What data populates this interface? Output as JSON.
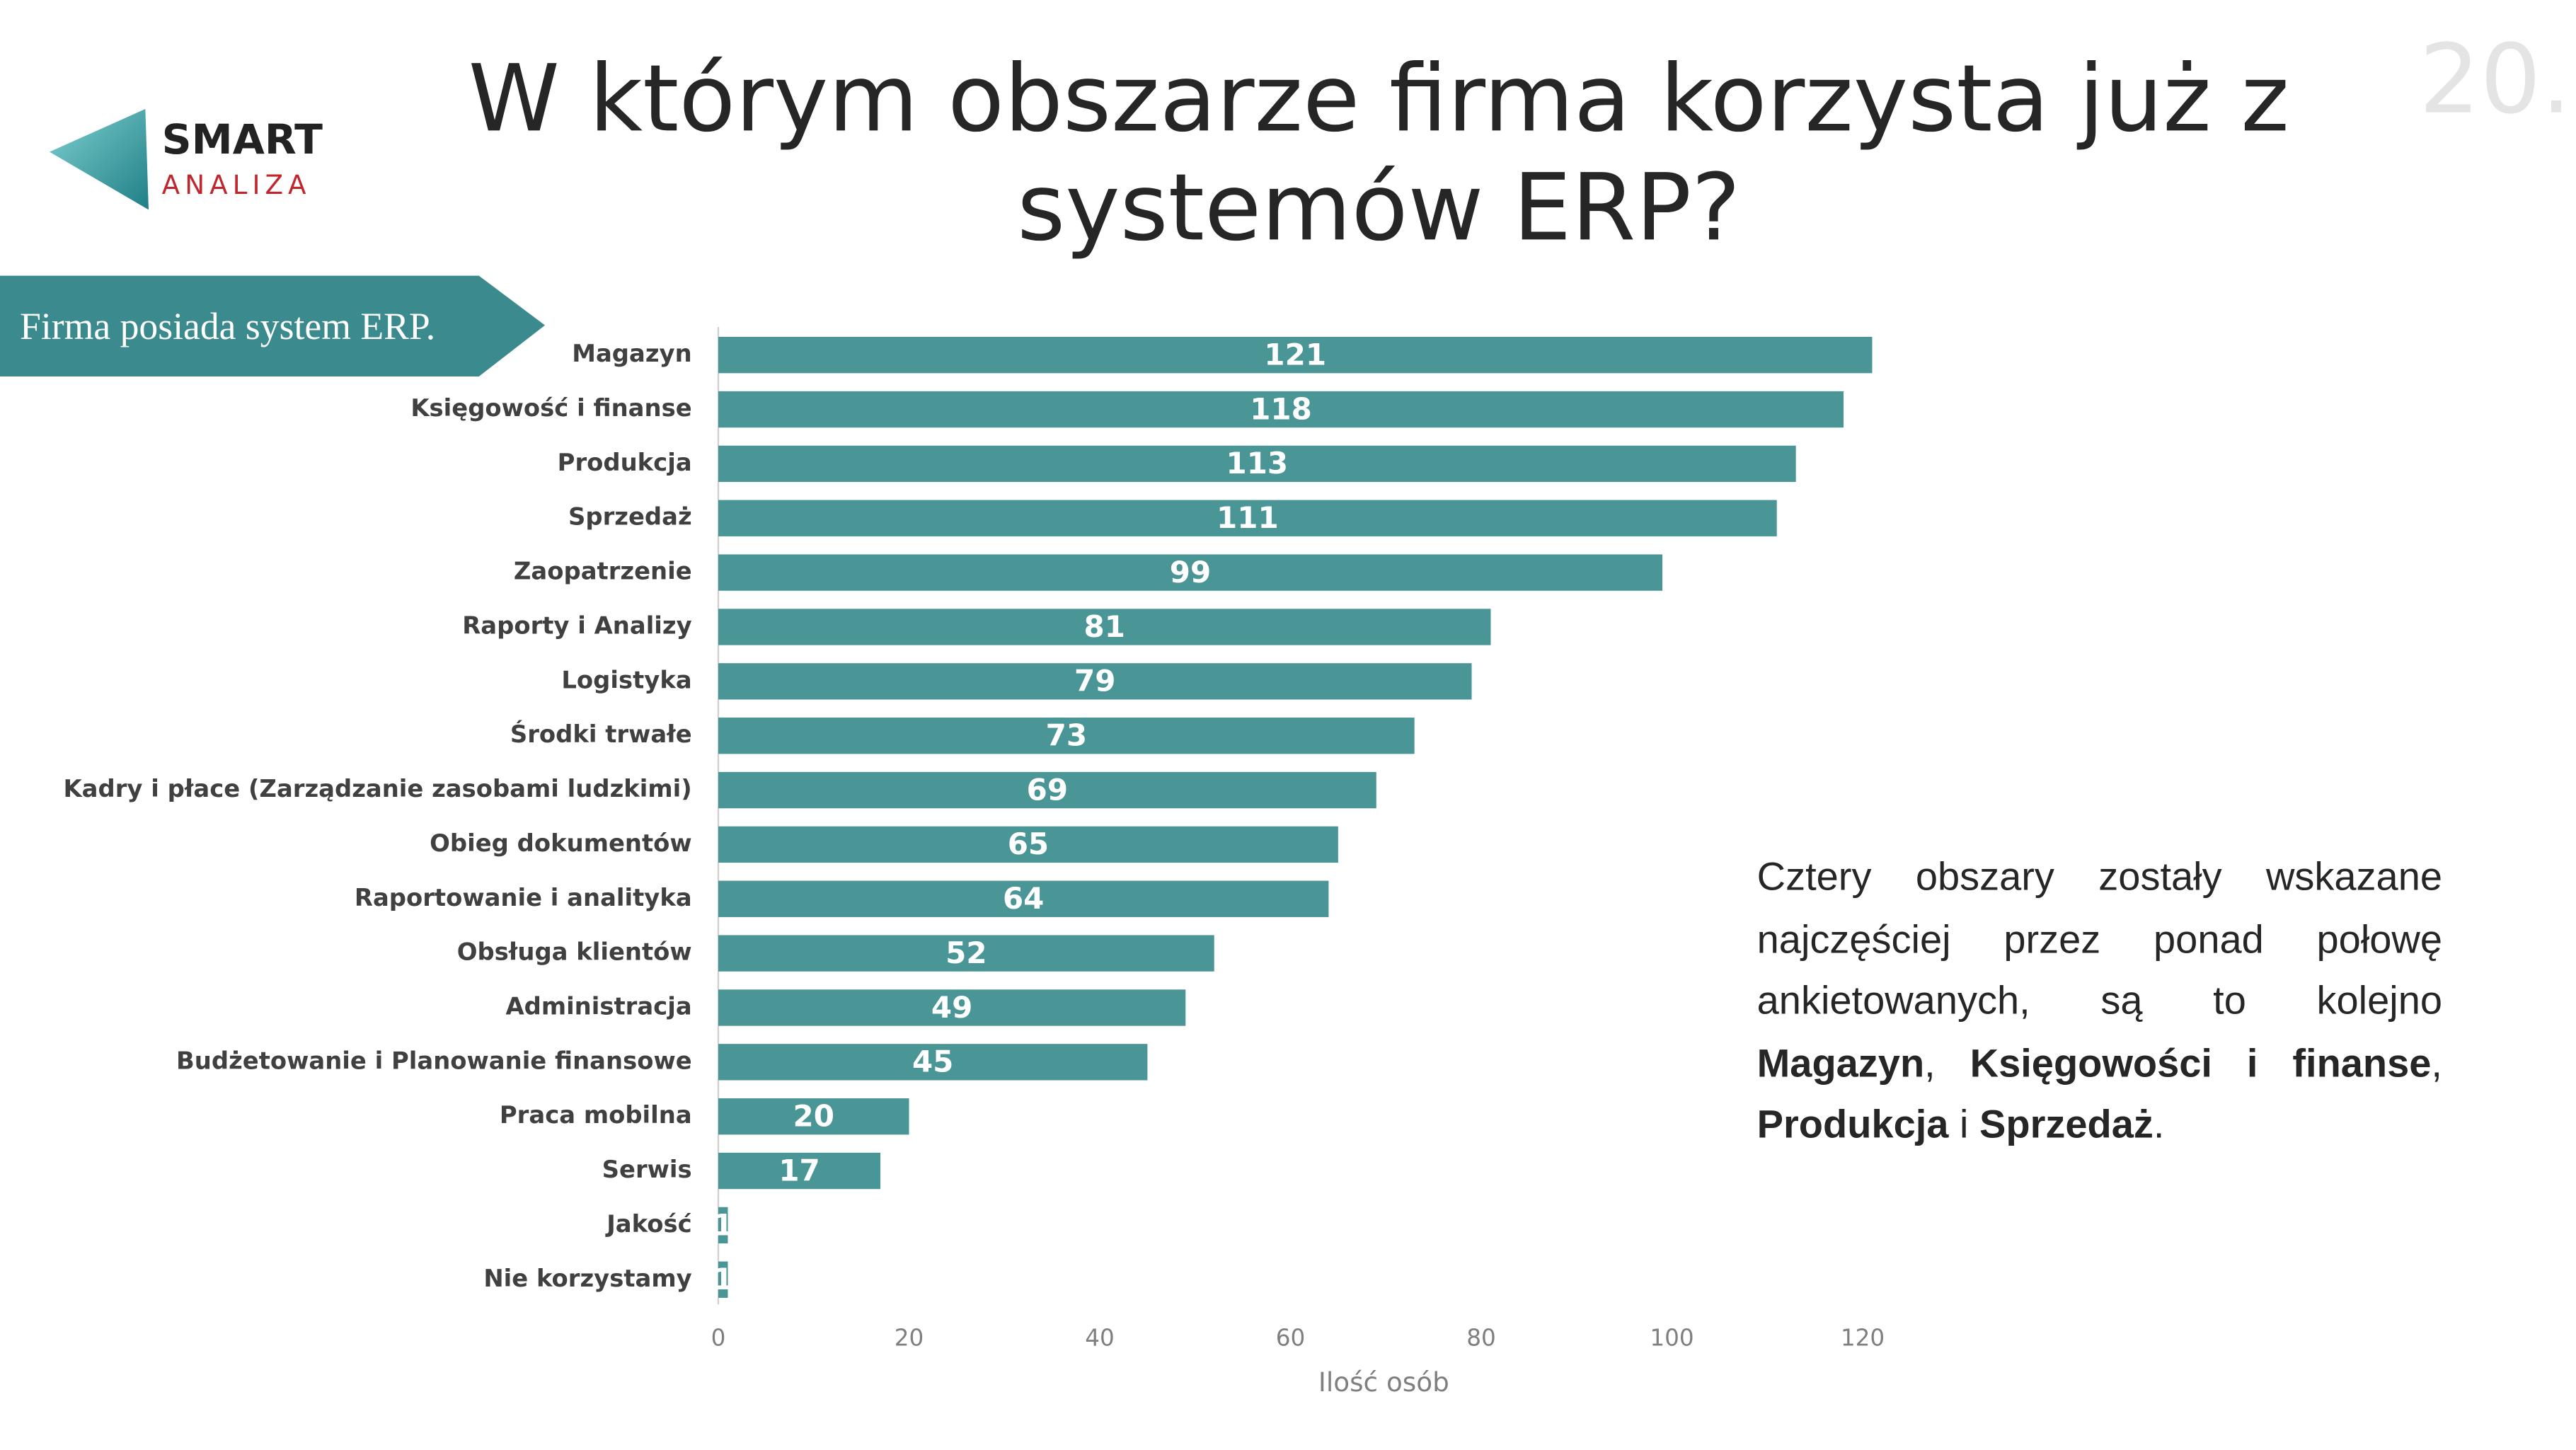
{
  "logo": {
    "name": "SMART",
    "sub": "ANALIZA"
  },
  "page_number": "20.",
  "banner": "Firma posiada system ERP.",
  "chart_data": {
    "type": "bar",
    "orientation": "horizontal",
    "title": "W którym obszarze firma korzysta już z systemów ERP?",
    "categories": [
      "Magazyn",
      "Księgowość i finanse",
      "Produkcja",
      "Sprzedaż",
      "Zaopatrzenie",
      "Raporty i Analizy",
      "Logistyka",
      "Środki trwałe",
      "Kadry i płace (Zarządzanie zasobami ludzkimi)",
      "Obieg dokumentów",
      "Raportowanie i analityka",
      "Obsługa klientów",
      "Administracja",
      "Budżetowanie i Planowanie finansowe",
      "Praca mobilna",
      "Serwis",
      "Jakość",
      "Nie korzystamy"
    ],
    "values": [
      121,
      118,
      113,
      111,
      99,
      81,
      79,
      73,
      69,
      65,
      64,
      52,
      49,
      45,
      20,
      17,
      1,
      1
    ],
    "color": "#4a9696",
    "xlabel": "Ilość osób",
    "xlim": [
      0,
      125
    ],
    "xticks": [
      0,
      20,
      40,
      60,
      80,
      100,
      120
    ],
    "grid": false
  },
  "note": [
    {
      "text": "Cztery obszary zostały wskazane najczęściej przez ponad połowę ankietowanych, są to kolejno ",
      "bold": false
    },
    {
      "text": "Magazyn",
      "bold": true
    },
    {
      "text": ", ",
      "bold": false
    },
    {
      "text": "Księgowości i finanse",
      "bold": true
    },
    {
      "text": ", ",
      "bold": false
    },
    {
      "text": "Produkcja",
      "bold": true
    },
    {
      "text": " i ",
      "bold": false
    },
    {
      "text": "Sprzedaż",
      "bold": true
    },
    {
      "text": ".",
      "bold": false
    }
  ]
}
